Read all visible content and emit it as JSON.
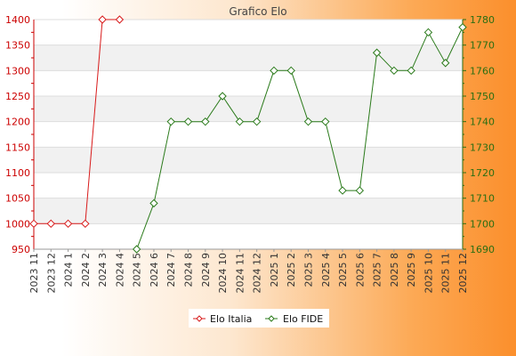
{
  "chart_data": {
    "type": "line",
    "title": "Grafico Elo",
    "categories": [
      "2023 11",
      "2023 12",
      "2024 1",
      "2024 2",
      "2024 3",
      "2024 4",
      "2024 5",
      "2024 6",
      "2024 7",
      "2024 8",
      "2024 9",
      "2024 10",
      "2024 11",
      "2024 12",
      "2025 1",
      "2025 2",
      "2025 3",
      "2025 4",
      "2025 5",
      "2025 6",
      "2025 7",
      "2025 8",
      "2025 9",
      "2025 10",
      "2025 11",
      "2025 12"
    ],
    "series": [
      {
        "name": "Elo Italia",
        "axis": "left",
        "color": "#d81a1a",
        "values": [
          1000,
          1000,
          1000,
          1000,
          1400,
          1400,
          null,
          null,
          null,
          null,
          null,
          null,
          null,
          null,
          null,
          null,
          null,
          null,
          null,
          null,
          null,
          null,
          null,
          null,
          null,
          null
        ]
      },
      {
        "name": "Elo FIDE",
        "axis": "right",
        "color": "#2a7a1a",
        "values": [
          null,
          null,
          null,
          null,
          null,
          null,
          1690,
          1708,
          1740,
          1740,
          1740,
          1750,
          1740,
          1740,
          1760,
          1760,
          1740,
          1740,
          1713,
          1713,
          1767,
          1760,
          1760,
          1775,
          1763,
          1777
        ]
      }
    ],
    "y_left": {
      "range": [
        950,
        1400
      ],
      "ticks": [
        950,
        1000,
        1050,
        1100,
        1150,
        1200,
        1250,
        1300,
        1350,
        1400
      ]
    },
    "y_right": {
      "range": [
        1690,
        1780
      ],
      "ticks": [
        1690,
        1700,
        1710,
        1720,
        1730,
        1740,
        1750,
        1760,
        1770,
        1780
      ]
    },
    "grid": true,
    "legend_position": "bottom"
  }
}
